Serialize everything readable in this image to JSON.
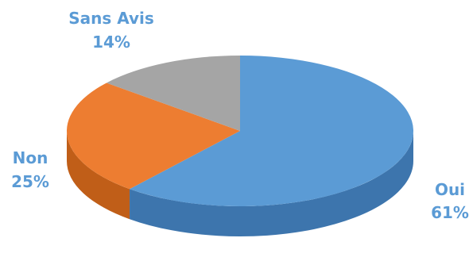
{
  "chart_data": {
    "type": "pie",
    "style": "3d",
    "slices": [
      {
        "name": "Oui",
        "value": 61,
        "percent_label": "61%",
        "color": "#5b9bd5",
        "side_color": "#3d75ad"
      },
      {
        "name": "Non",
        "value": 25,
        "percent_label": "25%",
        "color": "#ed7d31",
        "side_color": "#c05e18"
      },
      {
        "name": "Sans Avis",
        "value": 14,
        "percent_label": "14%",
        "color": "#a5a5a5",
        "side_color": "#808080"
      }
    ],
    "label_color": "#5b9bd5",
    "legend": "none"
  }
}
